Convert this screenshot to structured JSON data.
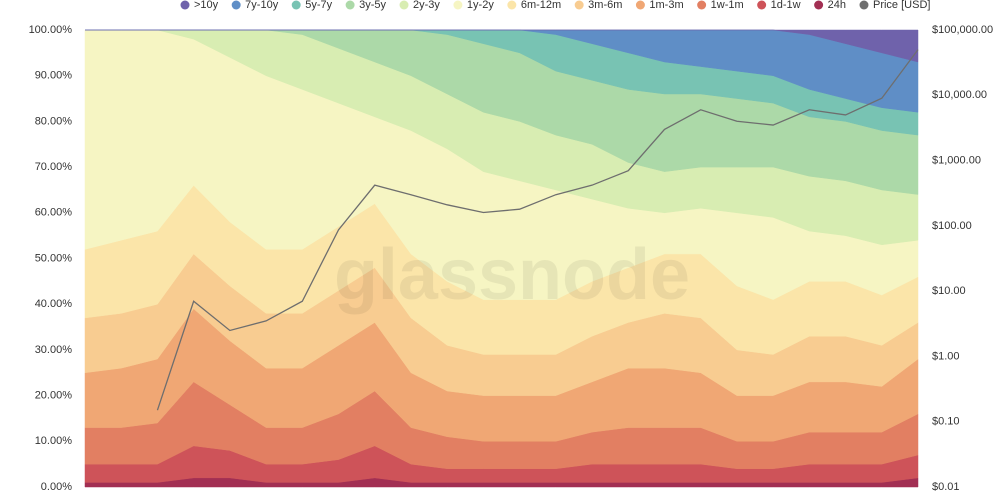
{
  "chart_data": {
    "type": "area",
    "stacked": true,
    "watermark": "glassnode",
    "categories": [
      null,
      null,
      null,
      null,
      null,
      null,
      null,
      null,
      null,
      null,
      null,
      null,
      null,
      null,
      null,
      null,
      null,
      null,
      null,
      null,
      null,
      null,
      null,
      null
    ],
    "series": [
      {
        "name": ">10y",
        "color": "#6f62ab",
        "values": [
          0,
          0,
          0,
          0,
          0,
          0,
          0,
          0,
          0,
          0,
          0,
          0,
          0,
          0,
          0,
          0,
          0,
          0,
          0,
          0,
          1,
          3,
          5,
          7
        ]
      },
      {
        "name": "7y-10y",
        "color": "#5f8ec6",
        "values": [
          0,
          0,
          0,
          0,
          0,
          0,
          0,
          0,
          0,
          0,
          0,
          0,
          0,
          1,
          3,
          5,
          7,
          8,
          9,
          10,
          12,
          12,
          12,
          11
        ]
      },
      {
        "name": "5y-7y",
        "color": "#78c3b3",
        "values": [
          0,
          0,
          0,
          0,
          0,
          0,
          0,
          0,
          0,
          0,
          1,
          3,
          5,
          8,
          8,
          8,
          7,
          6,
          6,
          6,
          6,
          5,
          5,
          5
        ]
      },
      {
        "name": "3y-5y",
        "color": "#acd9a8",
        "values": [
          0,
          0,
          0,
          0,
          0,
          0,
          1,
          4,
          7,
          10,
          13,
          15,
          15,
          14,
          14,
          16,
          17,
          16,
          15,
          14,
          13,
          13,
          13,
          13
        ]
      },
      {
        "name": "2y-3y",
        "color": "#d8edb2",
        "values": [
          0,
          0,
          0,
          2,
          6,
          10,
          12,
          12,
          12,
          12,
          12,
          13,
          13,
          12,
          12,
          10,
          9,
          9,
          10,
          11,
          12,
          12,
          12,
          10
        ]
      },
      {
        "name": "1y-2y",
        "color": "#f6f5c3",
        "values": [
          48,
          46,
          44,
          32,
          36,
          38,
          35,
          27,
          19,
          27,
          29,
          28,
          26,
          24,
          18,
          13,
          9,
          10,
          16,
          18,
          11,
          10,
          11,
          8
        ]
      },
      {
        "name": "6m-12m",
        "color": "#fbe5a9",
        "values": [
          15,
          16,
          16,
          15,
          14,
          14,
          14,
          14,
          14,
          14,
          14,
          12,
          12,
          12,
          12,
          12,
          13,
          14,
          14,
          12,
          12,
          12,
          11,
          10
        ]
      },
      {
        "name": "3m-6m",
        "color": "#f8cc91",
        "values": [
          12,
          12,
          12,
          12,
          12,
          12,
          12,
          12,
          12,
          12,
          10,
          9,
          9,
          9,
          10,
          10,
          12,
          12,
          10,
          9,
          10,
          10,
          9,
          8
        ]
      },
      {
        "name": "1m-3m",
        "color": "#f0a774",
        "values": [
          12,
          13,
          14,
          16,
          14,
          13,
          13,
          15,
          15,
          12,
          10,
          10,
          10,
          10,
          11,
          13,
          13,
          12,
          10,
          10,
          11,
          11,
          10,
          12
        ]
      },
      {
        "name": "1w-1m",
        "color": "#e27f62",
        "values": [
          8,
          8,
          9,
          14,
          10,
          8,
          8,
          10,
          12,
          8,
          7,
          6,
          6,
          6,
          7,
          8,
          8,
          8,
          6,
          6,
          7,
          7,
          7,
          9
        ]
      },
      {
        "name": "1d-1w",
        "color": "#ce5359",
        "values": [
          4,
          4,
          4,
          7,
          6,
          4,
          4,
          5,
          7,
          4,
          3,
          3,
          3,
          3,
          4,
          4,
          4,
          4,
          3,
          3,
          4,
          4,
          4,
          5
        ]
      },
      {
        "name": "24h",
        "color": "#a22f53",
        "values": [
          1,
          1,
          1,
          2,
          2,
          1,
          1,
          1,
          2,
          1,
          1,
          1,
          1,
          1,
          1,
          1,
          1,
          1,
          1,
          1,
          1,
          1,
          1,
          2
        ]
      },
      {
        "name": "Price [USD]",
        "color": "#6e6e6e",
        "type": "line",
        "axis": "y2",
        "values": [
          null,
          null,
          0.15,
          7,
          2.5,
          3.5,
          7,
          87,
          420,
          300,
          210,
          160,
          180,
          300,
          420,
          700,
          3000,
          6000,
          4000,
          3500,
          6000,
          5000,
          9000,
          50000
        ]
      }
    ],
    "ylim": [
      0,
      100
    ],
    "yticks": [
      {
        "value": 0,
        "label": "0.00%"
      },
      {
        "value": 10,
        "label": "10.00%"
      },
      {
        "value": 20,
        "label": "20.00%"
      },
      {
        "value": 30,
        "label": "30.00%"
      },
      {
        "value": 40,
        "label": "40.00%"
      },
      {
        "value": 50,
        "label": "50.00%"
      },
      {
        "value": 60,
        "label": "60.00%"
      },
      {
        "value": 70,
        "label": "70.00%"
      },
      {
        "value": 80,
        "label": "80.00%"
      },
      {
        "value": 90,
        "label": "90.00%"
      },
      {
        "value": 100,
        "label": "100.00%"
      }
    ],
    "y2lim": [
      0.01,
      100000
    ],
    "y2log": true,
    "y2ticks": [
      {
        "value": 0.01,
        "label": "$0.01"
      },
      {
        "value": 0.1,
        "label": "$0.10"
      },
      {
        "value": 1,
        "label": "$1.00"
      },
      {
        "value": 10,
        "label": "$10.00"
      },
      {
        "value": 100,
        "label": "$100.00"
      },
      {
        "value": 1000,
        "label": "$1,000.00"
      },
      {
        "value": 10000,
        "label": "$10,000.00"
      },
      {
        "value": 100000,
        "label": "$100,000.00"
      }
    ]
  }
}
